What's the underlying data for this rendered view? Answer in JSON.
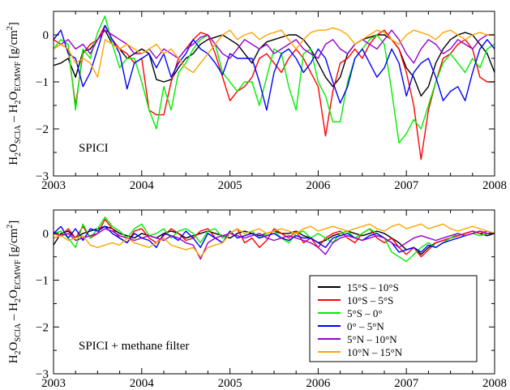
{
  "chart_data": [
    {
      "type": "line",
      "panel_label": "SPICI",
      "ylabel": {
        "main": "H",
        "sub1": "2",
        "mid1": "O",
        "sub2": "SCIA",
        "mid2": " – H",
        "sub3": "2",
        "mid3": "O",
        "sub4": "ECMWF",
        "unit_pre": " [g/cm",
        "unit_sup": "2",
        "unit_post": "]"
      },
      "xlim": [
        2003,
        2008
      ],
      "ylim": [
        -3,
        0.5
      ],
      "xticks": [
        "2003",
        "2004",
        "2005",
        "2006",
        "2007",
        "2008"
      ],
      "yticks": [
        "0",
        "−1",
        "−2",
        "−3"
      ],
      "series": [
        {
          "name": "15°S – 10°S",
          "color": "#000000",
          "values": [
            -0.65,
            -0.6,
            -0.5,
            -0.9,
            -0.35,
            -0.3,
            -0.1,
            0.1,
            -0.2,
            -0.3,
            -0.5,
            -0.4,
            -0.3,
            -0.4,
            -0.95,
            -1.0,
            -0.95,
            -0.7,
            -0.5,
            -0.4,
            -0.2,
            -0.1,
            -0.05,
            0,
            -0.1,
            -0.2,
            -0.4,
            -0.6,
            -0.3,
            -0.15,
            -0.1,
            -0.05,
            0,
            0,
            -0.1,
            -0.3,
            -0.6,
            -0.9,
            -1.1,
            -0.9,
            -0.4,
            -0.2,
            -0.1,
            -0.05,
            0,
            0,
            -0.1,
            -0.3,
            -0.7,
            -0.9,
            -1.3,
            -1.1,
            -0.6,
            -0.3,
            -0.1,
            0,
            0.05,
            0,
            -0.2,
            -0.4,
            -0.8
          ]
        },
        {
          "name": "10°S – 5°S",
          "color": "#ff0000",
          "values": [
            -0.1,
            -0.2,
            -0.3,
            -1.5,
            -0.4,
            -0.2,
            -0.1,
            0.2,
            -0.1,
            -0.3,
            -0.4,
            -0.6,
            -0.5,
            -1.6,
            -1.7,
            -1.7,
            -1.0,
            -0.5,
            -0.3,
            -0.1,
            0.05,
            0,
            -0.4,
            -0.9,
            -1.4,
            -1.2,
            -1.1,
            -0.9,
            -0.5,
            -0.4,
            -0.6,
            -0.8,
            -0.5,
            -0.3,
            -0.5,
            -0.8,
            -1.1,
            -2.15,
            -1.2,
            -0.6,
            -0.5,
            -0.3,
            -0.5,
            -0.2,
            0,
            0.1,
            -0.1,
            -0.3,
            -0.8,
            -1.5,
            -2.65,
            -1.6,
            -1.0,
            -0.5,
            -0.4,
            -0.2,
            -0.1,
            -0.3,
            -0.9,
            -1.0,
            -1.0
          ]
        },
        {
          "name": "5°S – 0°",
          "color": "#00ee00",
          "values": [
            -0.3,
            -0.1,
            -0.2,
            -1.6,
            -0.3,
            -0.5,
            0.05,
            0.4,
            -0.2,
            -0.7,
            -0.5,
            -0.5,
            -1.0,
            -1.6,
            -2.0,
            -1.1,
            -1.6,
            -0.8,
            -0.6,
            -0.3,
            -0.1,
            0,
            -0.2,
            -0.8,
            -1.0,
            -1.2,
            -1.0,
            -1.0,
            -1.5,
            -0.9,
            -0.3,
            -0.4,
            -1.1,
            -1.6,
            -0.4,
            -0.3,
            -1.0,
            -1.3,
            -1.85,
            -1.85,
            -1.0,
            -0.5,
            -0.3,
            -0.1,
            0,
            -0.2,
            -1.2,
            -2.3,
            -2.1,
            -1.8,
            -2.0,
            -1.5,
            -1.0,
            -0.6,
            -0.4,
            -0.6,
            -0.8,
            -0.5,
            -0.7,
            -0.3,
            -0.2
          ]
        },
        {
          "name": "0° – 5°N",
          "color": "#0000ff",
          "values": [
            -0.1,
            0.1,
            -0.4,
            -0.5,
            -1.1,
            -0.8,
            -0.3,
            0.2,
            -0.1,
            -0.4,
            -1.15,
            -0.6,
            -0.5,
            -0.4,
            -0.7,
            -0.4,
            -0.9,
            -0.6,
            -0.4,
            -0.1,
            -0.3,
            -0.4,
            -0.6,
            -0.85,
            -0.4,
            -0.5,
            -0.5,
            -0.5,
            -1.0,
            -1.6,
            -0.8,
            -0.4,
            -0.3,
            -0.5,
            -0.8,
            -0.6,
            -0.3,
            -0.5,
            -1.0,
            -1.45,
            -1.1,
            -0.5,
            -0.3,
            -0.6,
            -0.9,
            -0.7,
            -0.3,
            -0.6,
            -1.3,
            -0.8,
            -0.6,
            -0.5,
            -0.9,
            -1.4,
            -1.2,
            -1.1,
            -1.4,
            -0.8,
            -0.3,
            -0.1,
            -0.3
          ]
        },
        {
          "name": "5°N – 10°N",
          "color": "#9900cc",
          "values": [
            -0.3,
            -0.2,
            -0.1,
            -0.3,
            -0.2,
            -0.4,
            -0.1,
            0.1,
            0,
            -0.1,
            -0.2,
            -0.4,
            -0.4,
            -0.3,
            -0.5,
            -0.3,
            -0.4,
            -0.5,
            -0.3,
            -0.2,
            -0.05,
            0,
            -0.2,
            -0.4,
            -0.5,
            -0.3,
            -0.1,
            -0.2,
            -0.3,
            -0.2,
            -0.4,
            -0.3,
            -0.2,
            -0.1,
            -0.3,
            -0.4,
            -0.5,
            -0.2,
            -0.1,
            -0.3,
            -0.4,
            -0.2,
            -0.1,
            -0.2,
            -0.3,
            -0.1,
            0.1,
            -0.1,
            -0.4,
            -0.6,
            -0.3,
            -0.1,
            -0.2,
            -0.4,
            -0.3,
            -0.1,
            -0.2,
            -0.3,
            -0.1,
            0,
            0
          ]
        },
        {
          "name": "10°N – 15°N",
          "color": "#ffa500",
          "values": [
            -0.3,
            -0.2,
            -0.3,
            -0.6,
            -0.5,
            -0.6,
            -0.9,
            -0.1,
            -0.2,
            -0.3,
            -0.2,
            -0.3,
            -0.4,
            -0.3,
            -0.2,
            -0.4,
            -0.3,
            -0.5,
            -0.7,
            -0.8,
            -0.6,
            -0.4,
            -0.2,
            0,
            0.1,
            -0.1,
            0,
            0.05,
            -0.1,
            0,
            0.05,
            0.1,
            -0.1,
            -0.3,
            -0.1,
            0.05,
            0.1,
            0.1,
            0.15,
            0.1,
            0,
            -0.2,
            -0.1,
            0,
            0.1,
            0.05,
            -0.1,
            -0.2,
            0,
            0.1,
            0.05,
            0,
            -0.1,
            0.05,
            0.1,
            0,
            -0.1,
            0,
            0.05,
            0,
            0
          ]
        }
      ]
    },
    {
      "type": "line",
      "panel_label": "SPICI + methane filter",
      "ylabel": {
        "main": "H",
        "sub1": "2",
        "mid1": "O",
        "sub2": "SCIA",
        "mid2": " – H",
        "sub3": "2",
        "mid3": "O",
        "sub4": "ECMWF",
        "unit_pre": " [g/cm",
        "unit_sup": "2",
        "unit_post": "]"
      },
      "xlim": [
        2003,
        2008
      ],
      "ylim": [
        -3,
        0.5
      ],
      "xticks": [
        "2003",
        "2004",
        "2005",
        "2006",
        "2007",
        "2008"
      ],
      "yticks": [
        "0",
        "−1",
        "−2",
        "−3"
      ],
      "legend": {
        "position": "lower-right"
      },
      "series": [
        {
          "name": "15°S – 10°S",
          "color": "#000000",
          "values": [
            -0.25,
            0,
            0.05,
            -0.1,
            0,
            0.05,
            0.1,
            0.15,
            0.1,
            0,
            -0.05,
            -0.1,
            0,
            -0.05,
            -0.1,
            0,
            0.05,
            0,
            -0.1,
            -0.05,
            0,
            0.05,
            0,
            -0.05,
            -0.1,
            0,
            0.05,
            0,
            -0.05,
            0,
            0.05,
            0,
            0,
            0.05,
            -0.05,
            -0.1,
            -0.2,
            -0.15,
            -0.05,
            0,
            0.05,
            0,
            -0.05,
            0,
            0.05,
            0,
            -0.1,
            -0.2,
            -0.35,
            -0.3,
            -0.45,
            -0.3,
            -0.2,
            -0.15,
            -0.1,
            -0.05,
            0,
            0.05,
            0,
            -0.05,
            0
          ]
        },
        {
          "name": "10°S – 5°S",
          "color": "#ff0000",
          "values": [
            0,
            -0.05,
            0.1,
            -0.1,
            0.15,
            -0.1,
            0,
            0.3,
            0.1,
            -0.1,
            -0.2,
            0.05,
            0.1,
            -0.1,
            -0.2,
            -0.05,
            0.1,
            0,
            -0.15,
            -0.1,
            0.05,
            0.1,
            -0.1,
            -0.2,
            0,
            0.1,
            -0.2,
            -0.1,
            -0.3,
            -0.15,
            0.1,
            0,
            -0.1,
            0.05,
            -0.2,
            -0.1,
            -0.3,
            -0.1,
            0,
            0.05,
            -0.1,
            -0.2,
            0,
            0.1,
            -0.1,
            -0.2,
            -0.1,
            -0.3,
            -0.45,
            -0.3,
            -0.5,
            -0.35,
            -0.2,
            -0.15,
            -0.1,
            -0.05,
            0,
            0.05,
            0,
            0.05,
            0
          ]
        },
        {
          "name": "5°S – 0°",
          "color": "#00ee00",
          "values": [
            0,
            0.05,
            -0.1,
            -0.3,
            0.2,
            -0.1,
            0.1,
            0.35,
            0.15,
            0.05,
            -0.1,
            0.1,
            0.2,
            -0.05,
            0,
            0.1,
            -0.1,
            0.05,
            0.1,
            0,
            -0.2,
            0.05,
            0.1,
            -0.1,
            0,
            0.1,
            0,
            0.05,
            -0.1,
            0,
            0.05,
            -0.1,
            -0.2,
            0,
            0.05,
            -0.1,
            0,
            -0.1,
            -0.2,
            0,
            0.05,
            -0.1,
            0,
            0.1,
            0,
            -0.1,
            -0.4,
            -0.5,
            -0.6,
            -0.45,
            -0.3,
            -0.2,
            -0.3,
            -0.2,
            -0.1,
            0,
            -0.05,
            0,
            -0.05,
            0,
            0
          ]
        },
        {
          "name": "0° – 5°N",
          "color": "#0000ff",
          "values": [
            0,
            0.15,
            -0.1,
            0.1,
            -0.15,
            0.1,
            0.05,
            0.15,
            0,
            -0.1,
            -0.2,
            0,
            -0.1,
            -0.15,
            -0.3,
            0,
            -0.05,
            -0.15,
            0.05,
            -0.1,
            -0.3,
            0,
            -0.1,
            -0.2,
            0.05,
            -0.1,
            -0.05,
            0,
            -0.1,
            -0.05,
            0,
            -0.1,
            -0.15,
            -0.05,
            -0.1,
            -0.1,
            -0.2,
            -0.3,
            -0.1,
            -0.05,
            0,
            -0.1,
            -0.15,
            -0.05,
            0,
            -0.1,
            -0.2,
            -0.4,
            -0.35,
            -0.3,
            -0.4,
            -0.25,
            -0.3,
            -0.2,
            -0.15,
            -0.1,
            -0.05,
            0,
            0.05,
            0,
            0
          ]
        },
        {
          "name": "5°N – 10°N",
          "color": "#9900cc",
          "values": [
            -0.1,
            -0.05,
            0,
            -0.15,
            -0.1,
            -0.05,
            0,
            0.1,
            0.05,
            -0.05,
            -0.1,
            -0.15,
            -0.1,
            -0.05,
            -0.1,
            -0.15,
            -0.05,
            -0.1,
            -0.2,
            -0.25,
            -0.55,
            -0.2,
            -0.1,
            -0.05,
            0,
            -0.05,
            -0.1,
            -0.05,
            0,
            -0.1,
            -0.15,
            -0.1,
            -0.05,
            -0.1,
            -0.15,
            -0.2,
            -0.3,
            -0.45,
            -0.2,
            -0.1,
            -0.05,
            -0.1,
            -0.15,
            -0.1,
            -0.05,
            -0.1,
            -0.2,
            -0.3,
            -0.2,
            -0.1,
            -0.05,
            -0.1,
            -0.15,
            -0.1,
            -0.05,
            0,
            -0.05,
            0,
            0.05,
            0,
            0
          ]
        },
        {
          "name": "10°N – 15°N",
          "color": "#ffa500",
          "values": [
            -0.1,
            -0.05,
            -0.15,
            -0.1,
            -0.05,
            -0.25,
            -0.3,
            -0.25,
            -0.2,
            -0.25,
            -0.1,
            -0.2,
            -0.25,
            -0.3,
            -0.2,
            -0.1,
            -0.25,
            -0.3,
            -0.35,
            -0.3,
            -0.5,
            -0.3,
            -0.25,
            -0.2,
            0,
            0.1,
            0,
            0.05,
            0.1,
            0,
            0.05,
            0.1,
            0.05,
            0,
            0.1,
            0.15,
            0.05,
            0.1,
            0.15,
            0.1,
            0.05,
            0.1,
            0.15,
            0.2,
            0.1,
            0.05,
            0.15,
            0.2,
            0.1,
            0.15,
            0.2,
            0.1,
            0.15,
            0.2,
            0.1,
            0.05,
            0.1,
            0.15,
            0.1,
            0.05,
            0
          ]
        }
      ]
    }
  ]
}
